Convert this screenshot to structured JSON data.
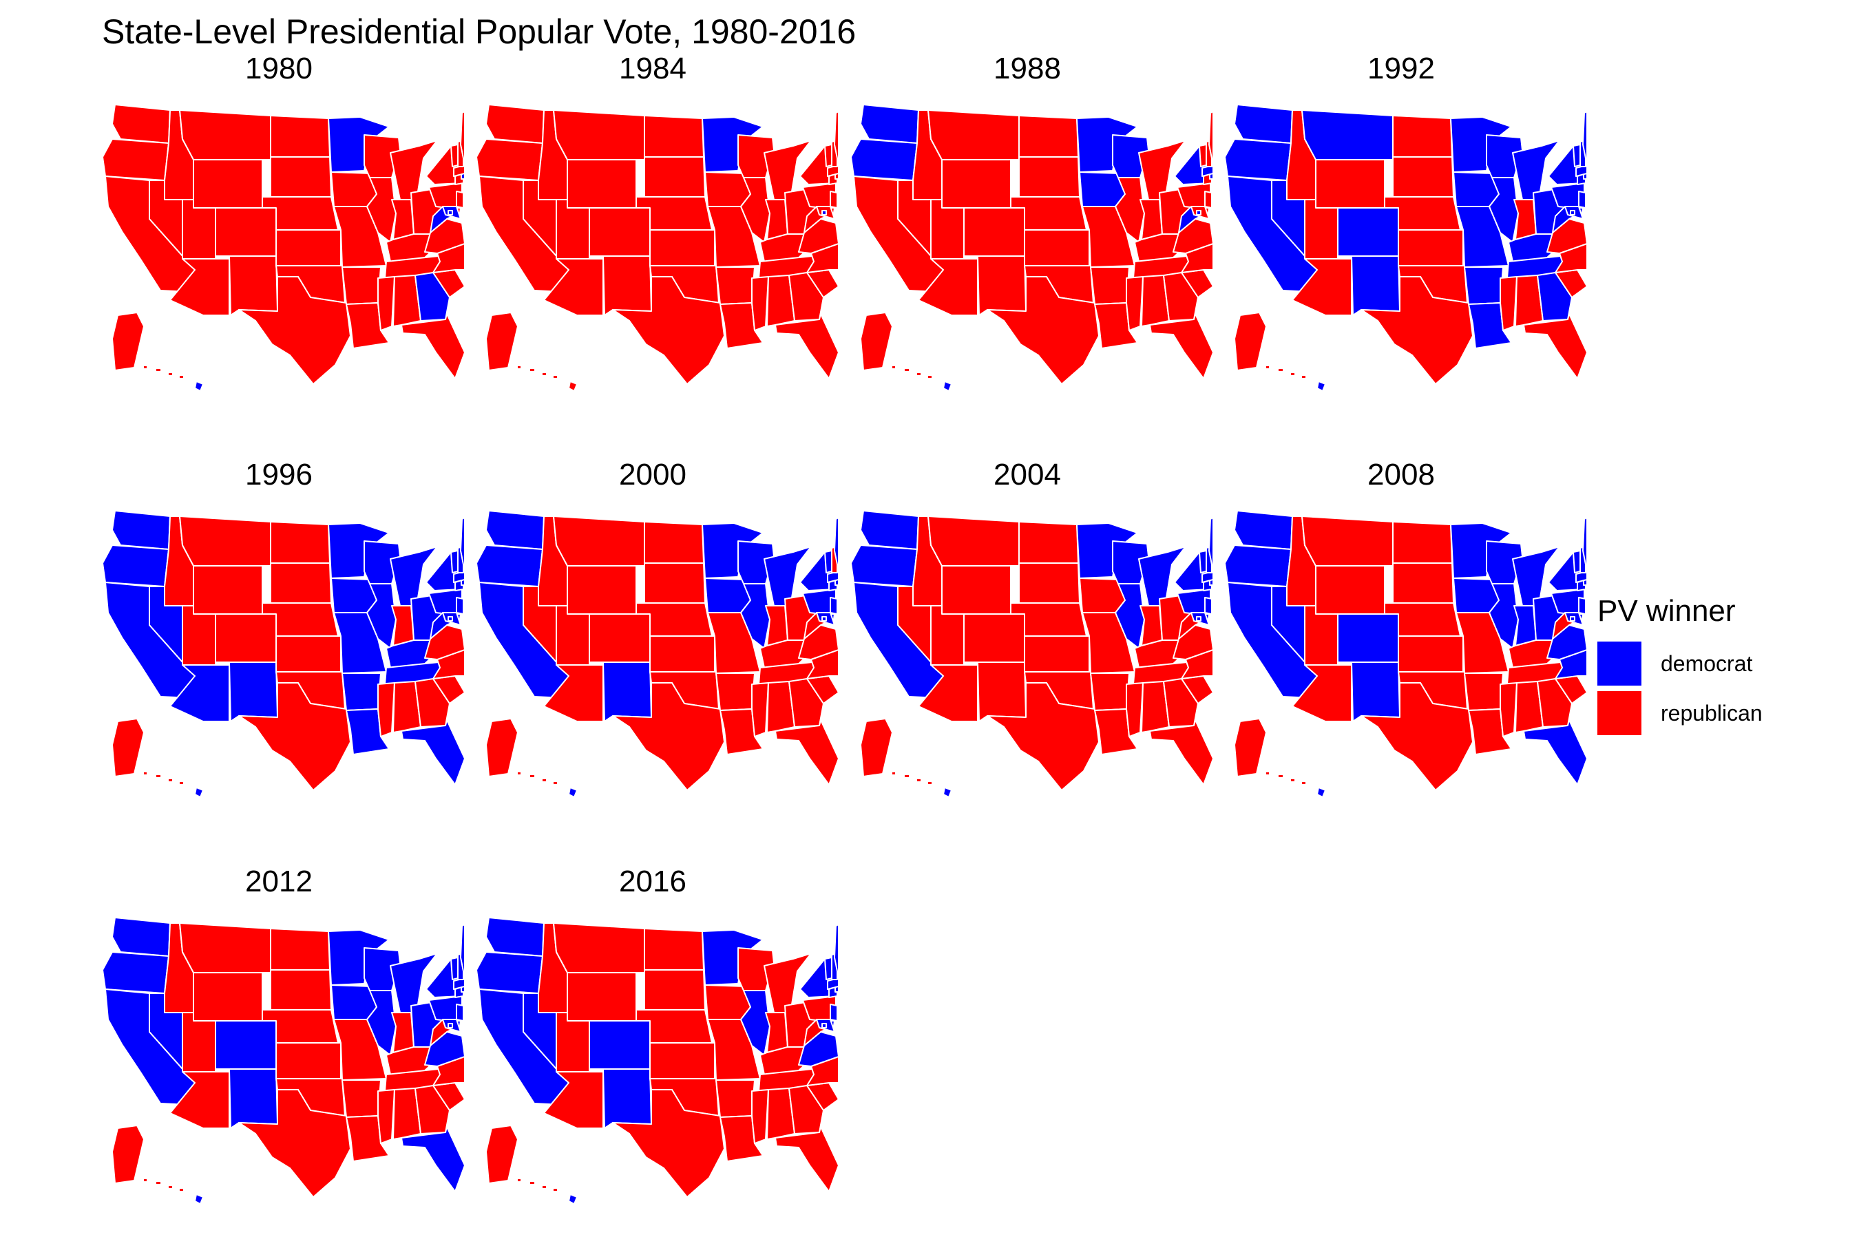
{
  "title": "State-Level Presidential Popular Vote, 1980-2016",
  "colors": {
    "democrat": "#0000FF",
    "republican": "#FF0000",
    "border": "#FFFFFF"
  },
  "legend": {
    "title": "PV winner",
    "items": [
      {
        "key": "democrat",
        "label": "democrat"
      },
      {
        "key": "republican",
        "label": "republican"
      }
    ]
  },
  "democrat_states": {
    "1980": [
      "MN",
      "MD",
      "GA",
      "WV",
      "RI",
      "HI",
      "DC"
    ],
    "1984": [
      "MN",
      "DC"
    ],
    "1988": [
      "WA",
      "OR",
      "MN",
      "WI",
      "IA",
      "WV",
      "NY",
      "MA",
      "RI",
      "HI",
      "DC"
    ],
    "1992": [
      "WA",
      "OR",
      "CA",
      "NV",
      "MT",
      "CO",
      "NM",
      "MN",
      "IA",
      "MO",
      "WI",
      "IL",
      "MI",
      "OH",
      "PA",
      "NY",
      "VT",
      "NH",
      "ME",
      "MA",
      "RI",
      "CT",
      "NJ",
      "DE",
      "MD",
      "WV",
      "KY",
      "TN",
      "AR",
      "LA",
      "GA",
      "HI",
      "DC"
    ],
    "1996": [
      "WA",
      "OR",
      "CA",
      "NV",
      "AZ",
      "NM",
      "MN",
      "IA",
      "MO",
      "AR",
      "LA",
      "WI",
      "IL",
      "MI",
      "OH",
      "KY",
      "TN",
      "WV",
      "PA",
      "NY",
      "VT",
      "NH",
      "ME",
      "MA",
      "RI",
      "CT",
      "NJ",
      "DE",
      "MD",
      "FL",
      "HI",
      "DC"
    ],
    "2000": [
      "WA",
      "OR",
      "CA",
      "NM",
      "MN",
      "IA",
      "WI",
      "IL",
      "MI",
      "PA",
      "NY",
      "VT",
      "ME",
      "MA",
      "RI",
      "CT",
      "NJ",
      "DE",
      "MD",
      "HI",
      "DC"
    ],
    "2004": [
      "WA",
      "OR",
      "CA",
      "MN",
      "WI",
      "IL",
      "MI",
      "PA",
      "NY",
      "VT",
      "NH",
      "ME",
      "MA",
      "RI",
      "CT",
      "NJ",
      "DE",
      "MD",
      "HI",
      "DC"
    ],
    "2008": [
      "WA",
      "OR",
      "CA",
      "NV",
      "CO",
      "NM",
      "MN",
      "IA",
      "WI",
      "IL",
      "MI",
      "IN",
      "OH",
      "PA",
      "VA",
      "NC",
      "FL",
      "NY",
      "VT",
      "NH",
      "ME",
      "MA",
      "RI",
      "CT",
      "NJ",
      "DE",
      "MD",
      "HI",
      "DC"
    ],
    "2012": [
      "WA",
      "OR",
      "CA",
      "NV",
      "CO",
      "NM",
      "MN",
      "IA",
      "WI",
      "IL",
      "MI",
      "OH",
      "PA",
      "VA",
      "FL",
      "NY",
      "VT",
      "NH",
      "ME",
      "MA",
      "RI",
      "CT",
      "NJ",
      "DE",
      "MD",
      "HI",
      "DC"
    ],
    "2016": [
      "WA",
      "OR",
      "CA",
      "NV",
      "CO",
      "NM",
      "MN",
      "IL",
      "VA",
      "NY",
      "VT",
      "NH",
      "ME",
      "MA",
      "RI",
      "CT",
      "NJ",
      "DE",
      "MD",
      "HI",
      "DC"
    ]
  },
  "panels": [
    {
      "year": "1980"
    },
    {
      "year": "1984"
    },
    {
      "year": "1988"
    },
    {
      "year": "1992"
    },
    {
      "year": "1996"
    },
    {
      "year": "2000"
    },
    {
      "year": "2004"
    },
    {
      "year": "2008"
    },
    {
      "year": "2012"
    },
    {
      "year": "2016"
    }
  ]
}
